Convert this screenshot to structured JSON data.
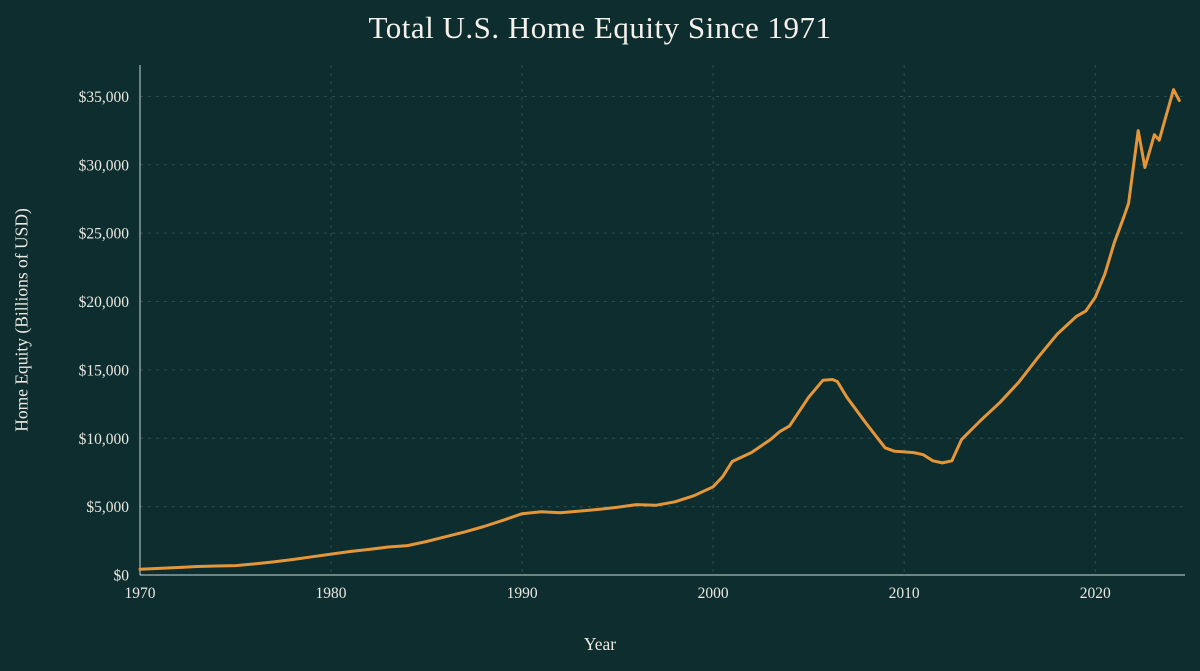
{
  "page": {
    "title": "Total U.S. Home Equity Since 1971"
  },
  "colors": {
    "background": "#0e2d2e",
    "line": "#e59638",
    "grid": "#2d5555",
    "axis": "#c2cfcf",
    "tick_text": "#ece9e2",
    "title_text": "#f5f2ec"
  },
  "chart_data": {
    "type": "line",
    "title": "Total U.S. Home Equity Since 1971",
    "xlabel": "Year",
    "ylabel": "Home Equity (Billions of USD)",
    "xlim": [
      1970,
      2024.7
    ],
    "ylim": [
      0,
      37300
    ],
    "grid": true,
    "grid_style": "dashed",
    "legend": "none",
    "x_ticks": [
      1970,
      1980,
      1990,
      2000,
      2010,
      2020
    ],
    "x_tick_labels": [
      "1970",
      "1980",
      "1990",
      "2000",
      "2010",
      "2020"
    ],
    "y_ticks": [
      0,
      5000,
      10000,
      15000,
      20000,
      25000,
      30000,
      35000
    ],
    "y_tick_labels": [
      "$0",
      "$5,000",
      "$10,000",
      "$15,000",
      "$20,000",
      "$25,000",
      "$30,000",
      "$35,000"
    ],
    "series": [
      {
        "name": "Total U.S. Home Equity (Billions of USD)",
        "points": [
          [
            1970,
            420
          ],
          [
            1971,
            480
          ],
          [
            1972,
            545
          ],
          [
            1973,
            620
          ],
          [
            1974,
            655
          ],
          [
            1975,
            690
          ],
          [
            1976,
            810
          ],
          [
            1977,
            960
          ],
          [
            1978,
            1130
          ],
          [
            1979,
            1330
          ],
          [
            1980,
            1530
          ],
          [
            1981,
            1720
          ],
          [
            1982,
            1870
          ],
          [
            1983,
            2050
          ],
          [
            1984,
            2150
          ],
          [
            1985,
            2450
          ],
          [
            1986,
            2800
          ],
          [
            1987,
            3150
          ],
          [
            1988,
            3550
          ],
          [
            1989,
            4000
          ],
          [
            1990,
            4480
          ],
          [
            1991,
            4620
          ],
          [
            1992,
            4560
          ],
          [
            1993,
            4670
          ],
          [
            1994,
            4800
          ],
          [
            1995,
            4960
          ],
          [
            1996,
            5150
          ],
          [
            1997,
            5100
          ],
          [
            1998,
            5350
          ],
          [
            1999,
            5800
          ],
          [
            2000,
            6450
          ],
          [
            2000.5,
            7200
          ],
          [
            2001,
            8300
          ],
          [
            2002,
            8950
          ],
          [
            2003,
            9900
          ],
          [
            2003.5,
            10500
          ],
          [
            2004,
            10900
          ],
          [
            2005,
            13000
          ],
          [
            2005.75,
            14250
          ],
          [
            2006.25,
            14300
          ],
          [
            2006.5,
            14150
          ],
          [
            2007,
            13000
          ],
          [
            2008,
            11100
          ],
          [
            2009,
            9300
          ],
          [
            2009.5,
            9050
          ],
          [
            2010,
            9000
          ],
          [
            2010.5,
            8950
          ],
          [
            2011,
            8800
          ],
          [
            2011.5,
            8350
          ],
          [
            2012,
            8200
          ],
          [
            2012.5,
            8350
          ],
          [
            2013,
            9900
          ],
          [
            2014,
            11300
          ],
          [
            2015,
            12600
          ],
          [
            2016,
            14100
          ],
          [
            2017,
            15900
          ],
          [
            2018,
            17600
          ],
          [
            2019,
            18900
          ],
          [
            2019.5,
            19300
          ],
          [
            2020,
            20300
          ],
          [
            2020.5,
            22000
          ],
          [
            2021,
            24300
          ],
          [
            2021.5,
            26200
          ],
          [
            2021.75,
            27200
          ],
          [
            2022.25,
            32500
          ],
          [
            2022.6,
            29800
          ],
          [
            2023.1,
            32200
          ],
          [
            2023.35,
            31800
          ],
          [
            2024.1,
            35500
          ],
          [
            2024.4,
            34700
          ]
        ]
      }
    ]
  }
}
